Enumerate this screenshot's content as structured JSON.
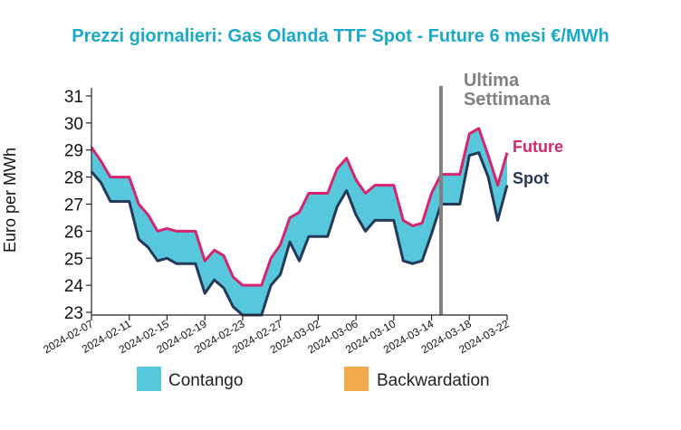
{
  "chart_data": {
    "type": "line",
    "title": "Prezzi giornalieri: Gas Olanda TTF Spot - Future 6 mesi €/MWh",
    "ylabel": "Euro per MWh",
    "xlabel": "",
    "ylim": [
      22.9,
      31.3
    ],
    "yticks": [
      23,
      24,
      25,
      26,
      27,
      28,
      29,
      30,
      31
    ],
    "x": [
      "2024-02-07",
      "2024-02-08",
      "2024-02-09",
      "2024-02-10",
      "2024-02-11",
      "2024-02-12",
      "2024-02-13",
      "2024-02-14",
      "2024-02-15",
      "2024-02-16",
      "2024-02-17",
      "2024-02-18",
      "2024-02-19",
      "2024-02-20",
      "2024-02-21",
      "2024-02-22",
      "2024-02-23",
      "2024-02-24",
      "2024-02-25",
      "2024-02-26",
      "2024-02-27",
      "2024-02-28",
      "2024-02-29",
      "2024-03-01",
      "2024-03-02",
      "2024-03-03",
      "2024-03-04",
      "2024-03-05",
      "2024-03-06",
      "2024-03-07",
      "2024-03-08",
      "2024-03-09",
      "2024-03-10",
      "2024-03-11",
      "2024-03-12",
      "2024-03-13",
      "2024-03-14",
      "2024-03-15",
      "2024-03-16",
      "2024-03-17",
      "2024-03-18",
      "2024-03-19",
      "2024-03-20",
      "2024-03-21",
      "2024-03-22"
    ],
    "xticks": [
      "2024-02-07",
      "2024-02-11",
      "2024-02-15",
      "2024-02-19",
      "2024-02-23",
      "2024-02-27",
      "2024-03-02",
      "2024-03-06",
      "2024-03-10",
      "2024-03-14",
      "2024-03-18",
      "2024-03-22"
    ],
    "series": [
      {
        "name": "Future",
        "color": "#d6246e",
        "values": [
          29.1,
          28.6,
          28.0,
          28.0,
          28.0,
          27.0,
          26.6,
          26.0,
          26.1,
          26.0,
          26.0,
          26.0,
          24.9,
          25.3,
          25.1,
          24.3,
          24.0,
          24.0,
          24.0,
          25.0,
          25.5,
          26.5,
          26.7,
          27.4,
          27.4,
          27.4,
          28.3,
          28.7,
          27.9,
          27.4,
          27.7,
          27.7,
          27.7,
          26.4,
          26.2,
          26.3,
          27.4,
          28.1,
          28.1,
          28.1,
          29.6,
          29.8,
          28.8,
          27.7,
          28.9
        ]
      },
      {
        "name": "Spot",
        "color": "#243858",
        "values": [
          28.2,
          27.8,
          27.1,
          27.1,
          27.1,
          25.7,
          25.4,
          24.9,
          25.0,
          24.8,
          24.8,
          24.8,
          23.7,
          24.2,
          23.9,
          23.2,
          22.9,
          22.9,
          22.9,
          24.0,
          24.4,
          25.6,
          24.9,
          25.8,
          25.8,
          25.8,
          26.9,
          27.5,
          26.6,
          26.0,
          26.4,
          26.4,
          26.4,
          24.9,
          24.8,
          24.9,
          25.9,
          27.0,
          27.0,
          27.0,
          28.8,
          28.9,
          28.0,
          26.4,
          27.7
        ]
      }
    ],
    "fill_between": {
      "contango_color": "#57c8dc",
      "backwardation_color": "#f0ab4c"
    },
    "vline": {
      "x": "2024-03-15",
      "label_line1": "Ultima",
      "label_line2": "Settimana",
      "color": "#808080"
    },
    "legend": {
      "placement": "bottom",
      "items": [
        {
          "label": "Contango",
          "color": "#57c8dc"
        },
        {
          "label": "Backwardation",
          "color": "#f0ab4c"
        }
      ]
    },
    "grid": false,
    "title_color": "#1aa9c9"
  }
}
